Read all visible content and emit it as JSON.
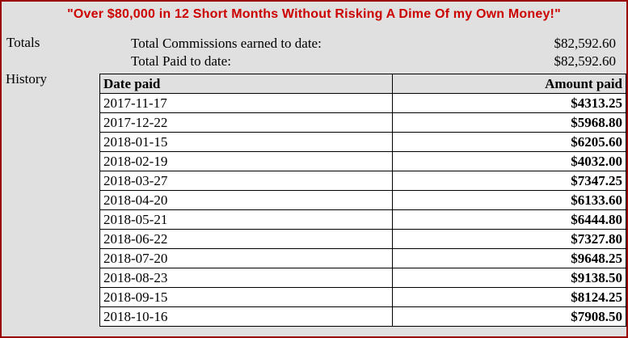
{
  "banner": {
    "title": "\"Over $80,000 in 12 Short Months Without Risking A Dime Of my Own Money!\""
  },
  "totals": {
    "section_label": "Totals",
    "rows": [
      {
        "label": "Total Commissions earned to date:",
        "value": "$82,592.60"
      },
      {
        "label": "Total Paid to date:",
        "value": "$82,592.60"
      }
    ]
  },
  "history": {
    "section_label": "History",
    "columns": [
      "Date paid",
      "Amount paid"
    ],
    "rows": [
      [
        "2017-11-17",
        "$4313.25"
      ],
      [
        "2017-12-22",
        "$5968.80"
      ],
      [
        "2018-01-15",
        "$6205.60"
      ],
      [
        "2018-02-19",
        "$4032.00"
      ],
      [
        "2018-03-27",
        "$7347.25"
      ],
      [
        "2018-04-20",
        "$6133.60"
      ],
      [
        "2018-05-21",
        "$6444.80"
      ],
      [
        "2018-06-22",
        "$7327.80"
      ],
      [
        "2018-07-20",
        "$9648.25"
      ],
      [
        "2018-08-23",
        "$9138.50"
      ],
      [
        "2018-09-15",
        "$8124.25"
      ],
      [
        "2018-10-16",
        "$7908.50"
      ]
    ]
  },
  "colors": {
    "page-bg": "#e0e0e0",
    "border-red": "#990000",
    "banner-text": "#cc0000",
    "header-bg": "#e0e0e0",
    "cell-bg": "#ffffff"
  }
}
